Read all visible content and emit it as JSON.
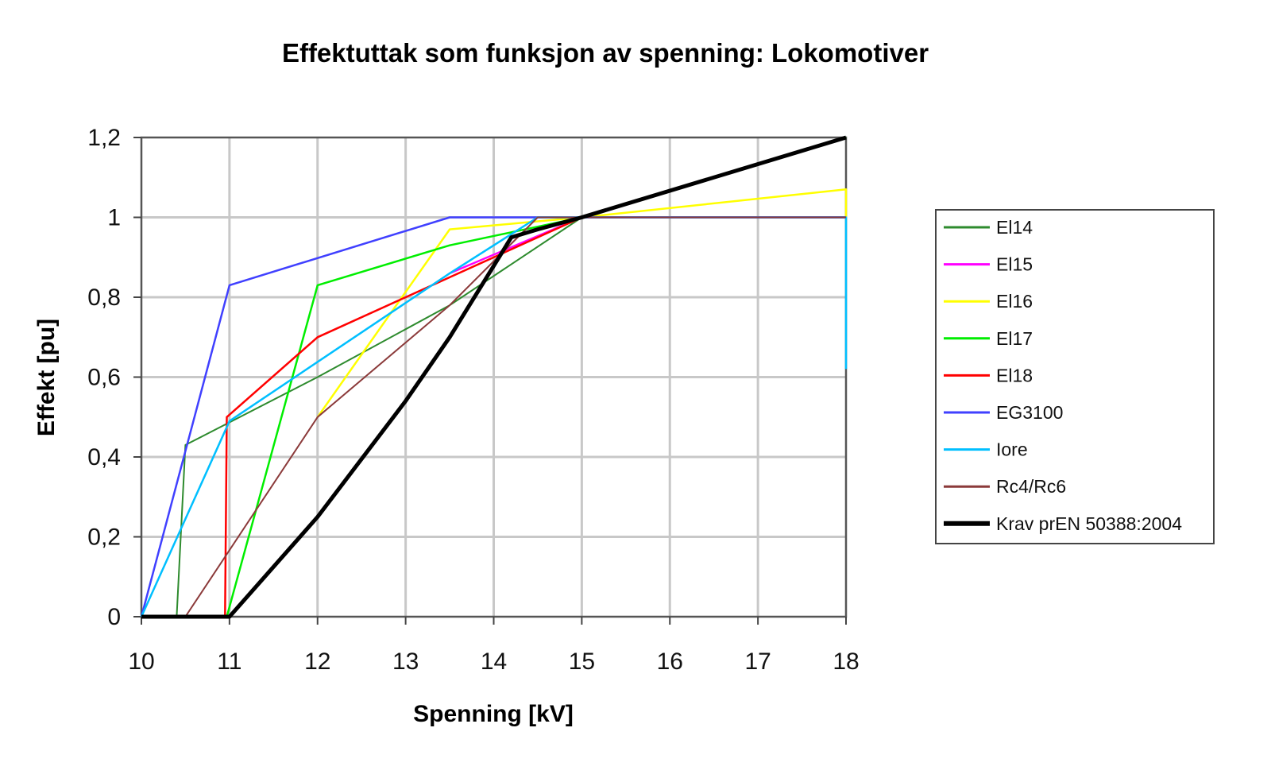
{
  "chart_data": {
    "type": "line",
    "title": "Effektuttak som funksjon av spenning: Lokomotiver",
    "xlabel": "Spenning [kV]",
    "ylabel": "Effekt [pu]",
    "xlim": [
      10,
      18
    ],
    "ylim": [
      0,
      1.2
    ],
    "x_ticks": [
      "10",
      "11",
      "12",
      "13",
      "14",
      "15",
      "16",
      "17",
      "18"
    ],
    "y_ticks": [
      "0",
      "0,2",
      "0,4",
      "0,6",
      "0,8",
      "1",
      "1,2"
    ],
    "grid": true,
    "legend_position": "right",
    "series": [
      {
        "name": "El14",
        "color": "#2e8b2e",
        "width": 2,
        "points": [
          [
            10.4,
            0
          ],
          [
            10.5,
            0.43
          ],
          [
            12,
            0.6
          ],
          [
            13.5,
            0.78
          ],
          [
            15,
            1
          ],
          [
            18,
            1.2
          ]
        ]
      },
      {
        "name": "El15",
        "color": "#ff00ff",
        "width": 2.5,
        "points": [
          [
            13.5,
            0.86
          ],
          [
            15,
            1
          ],
          [
            18,
            1
          ]
        ]
      },
      {
        "name": "El16",
        "color": "#ffff00",
        "width": 2.5,
        "points": [
          [
            12,
            0.5
          ],
          [
            13.5,
            0.97
          ],
          [
            14.5,
            0.99
          ],
          [
            15,
            1
          ],
          [
            18,
            1.07
          ],
          [
            18,
            1
          ]
        ]
      },
      {
        "name": "El17",
        "color": "#00ee00",
        "width": 2.5,
        "points": [
          [
            10.97,
            0
          ],
          [
            12,
            0.83
          ],
          [
            13.5,
            0.93
          ],
          [
            15,
            1
          ],
          [
            18,
            1.2
          ]
        ]
      },
      {
        "name": "El18",
        "color": "#ff0000",
        "width": 2.5,
        "points": [
          [
            10.95,
            0
          ],
          [
            10.97,
            0.5
          ],
          [
            12,
            0.7
          ],
          [
            13.5,
            0.85
          ],
          [
            15,
            1
          ],
          [
            18,
            1
          ]
        ]
      },
      {
        "name": "EG3100",
        "color": "#4040ff",
        "width": 2.5,
        "points": [
          [
            10,
            0
          ],
          [
            11,
            0.83
          ],
          [
            13.5,
            1
          ],
          [
            15,
            1
          ],
          [
            18,
            1
          ]
        ]
      },
      {
        "name": "Iore",
        "color": "#00bfff",
        "width": 2.5,
        "points": [
          [
            10,
            0
          ],
          [
            11,
            0.49
          ],
          [
            13.5,
            0.86
          ],
          [
            14.5,
            1
          ],
          [
            18,
            1
          ],
          [
            18,
            0.62
          ]
        ]
      },
      {
        "name": "Rc4/Rc6",
        "color": "#8b3a3a",
        "width": 2,
        "points": [
          [
            10.5,
            0
          ],
          [
            12,
            0.5
          ],
          [
            13.5,
            0.78
          ],
          [
            14.5,
            1
          ],
          [
            18,
            1
          ]
        ]
      },
      {
        "name": "Krav prEN 50388:2004",
        "color": "#000000",
        "width": 5,
        "points": [
          [
            10,
            0
          ],
          [
            11,
            0
          ],
          [
            12,
            0.25
          ],
          [
            13,
            0.54
          ],
          [
            13.5,
            0.7
          ],
          [
            14.2,
            0.95
          ],
          [
            14.5,
            0.97
          ],
          [
            15,
            1
          ],
          [
            18,
            1.2
          ]
        ]
      }
    ]
  },
  "legend": {
    "items": [
      "El14",
      "El15",
      "El16",
      "El17",
      "El18",
      "EG3100",
      "Iore",
      "Rc4/Rc6",
      "Krav prEN 50388:2004"
    ]
  }
}
